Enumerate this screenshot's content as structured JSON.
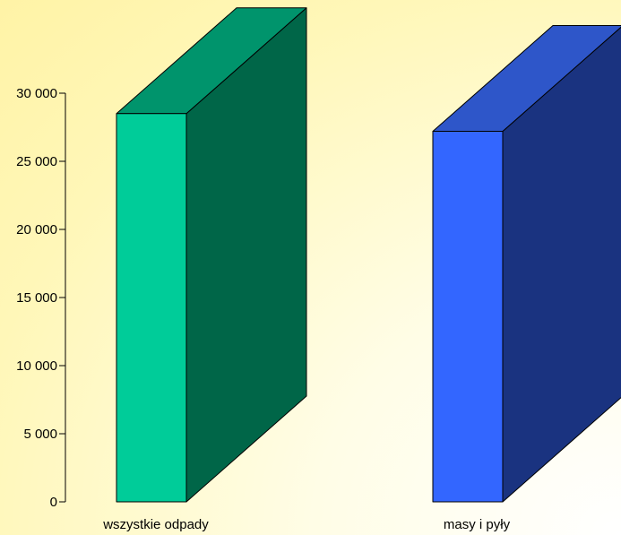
{
  "chart_data": {
    "type": "bar",
    "subtype": "3d-column",
    "categories": [
      "wszystkie odpady",
      "masy i pyły"
    ],
    "series": [
      {
        "values": [
          28500,
          27200
        ]
      }
    ],
    "ylim": [
      0,
      30000
    ],
    "yticks": [
      0,
      5000,
      10000,
      15000,
      20000,
      25000,
      30000
    ],
    "ytick_labels": [
      "0",
      "5 000",
      "10 000",
      "15 000",
      "20 000",
      "25 000",
      "30 000"
    ],
    "bar_colors": [
      {
        "front": "#00cc99",
        "side": "#006648",
        "top": "#00946c"
      },
      {
        "front": "#3366ff",
        "side": "#1a3380",
        "top": "#2e56c9"
      }
    ],
    "title": "",
    "xlabel": "",
    "ylabel": "",
    "grid": false,
    "legend": false
  }
}
